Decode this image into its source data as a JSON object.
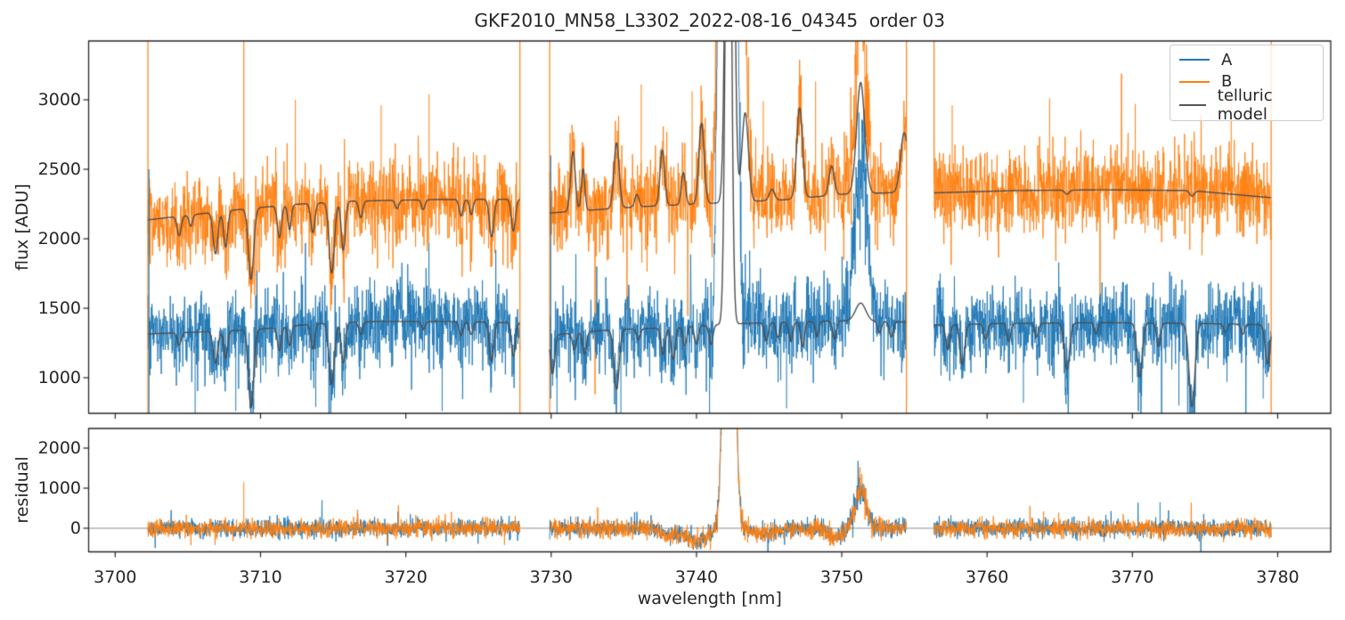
{
  "chart_data": {
    "type": "line",
    "title": "GKF2010_MN58_L3302_2022-08-16_04345  order 03",
    "xlabel": "wavelength [nm]",
    "xlim": [
      3698.17,
      3783.65
    ],
    "xticks": [
      3700,
      3710,
      3720,
      3730,
      3740,
      3750,
      3760,
      3770,
      3780
    ],
    "grid": false,
    "panels": [
      {
        "name": "flux",
        "ylabel": "flux [ADU]",
        "ylim": [
          744,
          3423
        ],
        "yticks": [
          1000,
          1500,
          2000,
          2500,
          3000
        ]
      },
      {
        "name": "residual",
        "ylabel": "residual",
        "ylim": [
          -590,
          2490
        ],
        "yticks": [
          0,
          1000,
          2000
        ],
        "zero_line": true
      }
    ],
    "legend": {
      "position": "upper right",
      "entries": [
        {
          "label": "A",
          "color": "#1f77b4"
        },
        {
          "label": "B",
          "color": "#ff7f0e"
        },
        {
          "label": "telluric model",
          "color": "#555555"
        }
      ]
    },
    "segments": [
      [
        3702.25,
        3727.85
      ],
      [
        3729.9,
        3754.45
      ],
      [
        3756.35,
        3779.55
      ]
    ],
    "telluric": {
      "color": "#4d4d4d",
      "A": {
        "base": [
          [
            3702.2,
            1315
          ],
          [
            3706,
            1330
          ],
          [
            3710,
            1350
          ],
          [
            3714,
            1390
          ],
          [
            3718,
            1405
          ],
          [
            3723,
            1405
          ],
          [
            3727.9,
            1395
          ],
          [
            3729.85,
            1305
          ],
          [
            3734,
            1345
          ],
          [
            3738,
            1360
          ],
          [
            3742,
            1385
          ],
          [
            3746,
            1400
          ],
          [
            3750,
            1410
          ],
          [
            3754.5,
            1400
          ],
          [
            3756.3,
            1380
          ],
          [
            3762,
            1392
          ],
          [
            3768,
            1396
          ],
          [
            3774,
            1392
          ],
          [
            3779.6,
            1380
          ]
        ],
        "features": [
          [
            3704.4,
            -90,
            0.13
          ],
          [
            3706.9,
            -230,
            0.16
          ],
          [
            3707.6,
            -200,
            0.13
          ],
          [
            3709.35,
            -560,
            0.18
          ],
          [
            3711.3,
            -170,
            0.13
          ],
          [
            3712.0,
            -140,
            0.12
          ],
          [
            3713.6,
            -180,
            0.13
          ],
          [
            3714.9,
            -440,
            0.18
          ],
          [
            3715.7,
            -290,
            0.14
          ],
          [
            3716.9,
            -90,
            0.13
          ],
          [
            3721.2,
            -60,
            0.12
          ],
          [
            3723.8,
            -100,
            0.13
          ],
          [
            3724.5,
            -90,
            0.12
          ],
          [
            3725.9,
            -280,
            0.15
          ],
          [
            3727.4,
            -240,
            0.14
          ],
          [
            3730.1,
            -280,
            0.14
          ],
          [
            3731.6,
            -120,
            0.13
          ],
          [
            3732.3,
            -160,
            0.13
          ],
          [
            3734.5,
            -430,
            0.18
          ],
          [
            3736.0,
            -80,
            0.13
          ],
          [
            3737.7,
            -190,
            0.14
          ],
          [
            3738.4,
            -230,
            0.14
          ],
          [
            3739.2,
            -140,
            0.13
          ],
          [
            3740.0,
            -130,
            0.13
          ],
          [
            3741.0,
            -140,
            0.13
          ],
          [
            3744.8,
            -130,
            0.13
          ],
          [
            3745.6,
            -110,
            0.12
          ],
          [
            3746.5,
            -140,
            0.13
          ],
          [
            3747.3,
            -180,
            0.13
          ],
          [
            3748.3,
            -110,
            0.12
          ],
          [
            3749.5,
            -130,
            0.13
          ],
          [
            3751.3,
            130,
            0.35
          ],
          [
            3752.6,
            -80,
            0.12
          ],
          [
            3753.4,
            -110,
            0.13
          ],
          [
            3757.3,
            -180,
            0.14
          ],
          [
            3758.3,
            -290,
            0.16
          ],
          [
            3759.9,
            -110,
            0.13
          ],
          [
            3761.5,
            -130,
            0.13
          ],
          [
            3763.4,
            -100,
            0.13
          ],
          [
            3765.5,
            -340,
            0.18
          ],
          [
            3767.5,
            -80,
            0.12
          ],
          [
            3770.5,
            -390,
            0.18
          ],
          [
            3771.8,
            -170,
            0.13
          ],
          [
            3774.1,
            -600,
            0.2
          ],
          [
            3776.4,
            -60,
            0.12
          ],
          [
            3777.6,
            -70,
            0.12
          ],
          [
            3779.3,
            -280,
            0.16
          ],
          [
            3742.2,
            5000,
            0.18
          ]
        ]
      },
      "B": {
        "base": [
          [
            3702.2,
            2135
          ],
          [
            3708,
            2205
          ],
          [
            3712,
            2245
          ],
          [
            3716,
            2270
          ],
          [
            3722,
            2282
          ],
          [
            3727.9,
            2285
          ],
          [
            3729.85,
            2185
          ],
          [
            3736,
            2230
          ],
          [
            3742,
            2260
          ],
          [
            3746,
            2280
          ],
          [
            3750,
            2320
          ],
          [
            3754.5,
            2335
          ],
          [
            3756.3,
            2330
          ],
          [
            3762,
            2347
          ],
          [
            3768,
            2352
          ],
          [
            3774,
            2347
          ],
          [
            3779.6,
            2295
          ]
        ],
        "features": [
          [
            3704.4,
            -140,
            0.14
          ],
          [
            3705.2,
            -80,
            0.12
          ],
          [
            3706.9,
            -300,
            0.16
          ],
          [
            3707.6,
            -260,
            0.14
          ],
          [
            3709.35,
            -510,
            0.18
          ],
          [
            3711.3,
            -230,
            0.14
          ],
          [
            3712.0,
            -180,
            0.12
          ],
          [
            3713.6,
            -210,
            0.14
          ],
          [
            3714.9,
            -510,
            0.18
          ],
          [
            3715.7,
            -350,
            0.14
          ],
          [
            3716.9,
            -120,
            0.13
          ],
          [
            3719.4,
            -60,
            0.12
          ],
          [
            3721.2,
            -70,
            0.12
          ],
          [
            3723.8,
            -120,
            0.13
          ],
          [
            3724.5,
            -110,
            0.12
          ],
          [
            3725.9,
            -270,
            0.15
          ],
          [
            3727.4,
            -230,
            0.14
          ],
          [
            3731.5,
            430,
            0.16
          ],
          [
            3732.2,
            300,
            0.12
          ],
          [
            3734.5,
            470,
            0.18
          ],
          [
            3735.9,
            90,
            0.14
          ],
          [
            3737.65,
            400,
            0.16
          ],
          [
            3739.1,
            230,
            0.14
          ],
          [
            3740.35,
            580,
            0.18
          ],
          [
            3743.35,
            640,
            0.22
          ],
          [
            3745.2,
            80,
            0.18
          ],
          [
            3747.1,
            650,
            0.2
          ],
          [
            3749.3,
            210,
            0.18
          ],
          [
            3751.3,
            800,
            0.28
          ],
          [
            3754.3,
            430,
            0.25
          ],
          [
            3765.5,
            -30,
            0.15
          ],
          [
            3774.1,
            -40,
            0.15
          ],
          [
            3742.3,
            6000,
            0.22
          ]
        ]
      }
    },
    "series": {
      "A": {
        "color": "#1f77b4",
        "noise_sigma": 140,
        "lines": [
          [
            3742.15,
            26000,
            0.33
          ],
          [
            3751.35,
            1150,
            0.42
          ]
        ],
        "spikes": [
          [
            3705.5,
            740
          ],
          [
            3708.3,
            760
          ],
          [
            3713.8,
            790
          ],
          [
            3722.5,
            760
          ],
          [
            3730.4,
            640
          ],
          [
            3734.8,
            700
          ],
          [
            3740.9,
            650
          ],
          [
            3746.2,
            780
          ],
          [
            3762.5,
            820
          ],
          [
            3773.2,
            800
          ],
          [
            3779.0,
            850
          ]
        ]
      },
      "B": {
        "color": "#ff7f0e",
        "noise_sigma": 150,
        "lines": [
          [
            3742.35,
            26000,
            0.4
          ],
          [
            3751.3,
            820,
            0.35
          ]
        ],
        "spikes": [
          [
            3712.4,
            3000
          ],
          [
            3718.3,
            2960
          ],
          [
            3721.6,
            3040
          ],
          [
            3736.2,
            3110
          ],
          [
            3739.7,
            3060
          ],
          [
            3744.6,
            2990
          ],
          [
            3748.2,
            3130
          ],
          [
            3757.6,
            2960
          ],
          [
            3764.3,
            3010
          ],
          [
            3770.2,
            2970
          ],
          [
            3776.8,
            3000
          ]
        ]
      }
    },
    "edge_spikes": [
      {
        "x": 3702.25,
        "series": "B",
        "top": 3423,
        "bottom": 744
      },
      {
        "x": 3702.32,
        "series": "A",
        "top": 2500,
        "bottom": 744
      },
      {
        "x": 3708.85,
        "series": "B",
        "top": 3420,
        "bottom": 1900
      },
      {
        "x": 3727.85,
        "series": "B",
        "top": 3423,
        "bottom": 744
      },
      {
        "x": 3729.9,
        "series": "B",
        "top": 3423,
        "bottom": 744
      },
      {
        "x": 3729.97,
        "series": "A",
        "top": 2600,
        "bottom": 850
      },
      {
        "x": 3754.45,
        "series": "B",
        "top": 3423,
        "bottom": 744
      },
      {
        "x": 3756.35,
        "series": "B",
        "top": 3423,
        "bottom": 2400
      },
      {
        "x": 3779.55,
        "series": "B",
        "top": 3423,
        "bottom": 744
      }
    ],
    "residual": {
      "noise_sigma": 110,
      "features": [
        [
          3742.25,
          11000,
          0.32
        ],
        [
          3751.3,
          950,
          0.38
        ],
        [
          3740.0,
          -330,
          0.7
        ],
        [
          3738.2,
          -180,
          0.5
        ],
        [
          3749.6,
          -260,
          0.45
        ],
        [
          3744.8,
          -130,
          0.9
        ]
      ],
      "spikes": [
        {
          "x": 3708.85,
          "value": 1150,
          "series": "B"
        },
        {
          "x": 3771.9,
          "value": 650,
          "series": "A"
        }
      ]
    }
  }
}
